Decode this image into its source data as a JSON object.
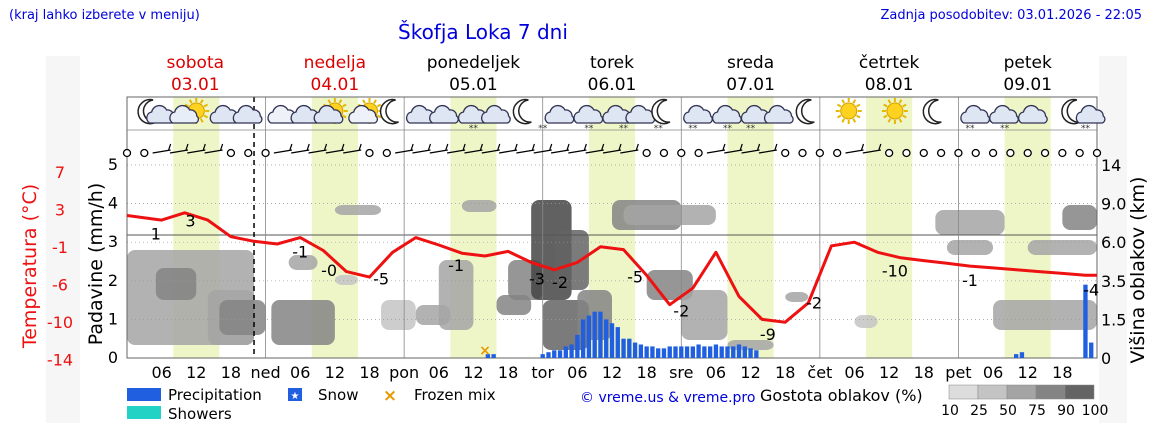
{
  "header": {
    "left_note": "(kraj lahko izberete v meniju)",
    "title": "Škofja Loka 7 dni",
    "updated": "Zadnja posodobitev: 03.01.2026 - 22:05"
  },
  "days": [
    {
      "name": "sobota",
      "date": "03.01",
      "weekend": true
    },
    {
      "name": "nedelja",
      "date": "04.01",
      "weekend": true
    },
    {
      "name": "ponedeljek",
      "date": "05.01",
      "weekend": false
    },
    {
      "name": "torek",
      "date": "06.01",
      "weekend": false
    },
    {
      "name": "sreda",
      "date": "07.01",
      "weekend": false
    },
    {
      "name": "četrtek",
      "date": "08.01",
      "weekend": false
    },
    {
      "name": "petek",
      "date": "09.01",
      "weekend": false
    }
  ],
  "x_day_labels": [
    "ned",
    "pon",
    "tor",
    "sre",
    "čet",
    "pet"
  ],
  "x_hour_labels": [
    "06",
    "12",
    "18"
  ],
  "axes": {
    "temp_label": "Temperatura (°C)",
    "temp_ticks": [
      "7",
      "3",
      "-1",
      "-6",
      "-10",
      "-14"
    ],
    "precip_label": "Padavine (mm/h)",
    "precip_ticks": [
      "5",
      "4",
      "3",
      "2",
      "1",
      "0"
    ],
    "cloud_label": "Višina oblakov (km)",
    "cloud_ticks": [
      "14",
      "9.0",
      "6.0",
      "3.5",
      "1.5",
      "0"
    ]
  },
  "legend": {
    "precipitation": "Precipitation",
    "snow": "Snow",
    "frozen": "Frozen mix",
    "showers": "Showers",
    "copyright": "© vreme.us & vreme.pro",
    "density_title": "Gostota oblakov (%)",
    "density_levels": [
      "10",
      "25",
      "50",
      "75",
      "90",
      "100"
    ],
    "density_colors": [
      "#dcdcdc",
      "#c4c4c4",
      "#a4a4a4",
      "#848484",
      "#646464",
      "#454545"
    ]
  },
  "colors": {
    "temp": "#ee1111",
    "precip": "#1f5fe0",
    "daylight": "#eef6c8",
    "weekend_text": "#dd0000",
    "header_blue": "#0000dd"
  },
  "chart_data": {
    "type": "line",
    "title": "Škofja Loka 7 dni",
    "x_unit": "hours from 03.01 00:00",
    "x_range": [
      0,
      168
    ],
    "now_hour": 22,
    "series": [
      {
        "name": "Temperatura (°C)",
        "x": [
          0,
          6,
          10,
          14,
          18,
          22,
          26,
          30,
          34,
          38,
          42,
          46,
          50,
          54,
          58,
          62,
          66,
          70,
          74,
          78,
          82,
          86,
          90,
          94,
          98,
          102,
          106,
          110,
          114,
          118,
          122,
          126,
          130,
          134,
          138,
          142,
          146,
          150,
          154,
          158,
          162,
          166,
          168
        ],
        "values": [
          1.5,
          1.0,
          1.8,
          1.0,
          -0.8,
          -1.3,
          -1.6,
          -0.9,
          -2.3,
          -4.6,
          -5.2,
          -2.5,
          -0.9,
          -1.7,
          -2.6,
          -2.9,
          -2.4,
          -3.6,
          -4.4,
          -3.6,
          -1.9,
          -2.2,
          -5.0,
          -8.2,
          -6.4,
          -2.5,
          -7.3,
          -9.8,
          -10.1,
          -8.0,
          -1.8,
          -1.4,
          -2.5,
          -3.1,
          -3.4,
          -3.7,
          -4.0,
          -4.2,
          -4.4,
          -4.6,
          -4.8,
          -5.0,
          -5.0
        ]
      }
    ],
    "temp_point_labels": [
      {
        "hour": 5,
        "label": "1"
      },
      {
        "hour": 11,
        "label": "3"
      },
      {
        "hour": 30,
        "label": "-1"
      },
      {
        "hour": 35,
        "label": "-0"
      },
      {
        "hour": 44,
        "label": "-5"
      },
      {
        "hour": 57,
        "label": "-1"
      },
      {
        "hour": 71,
        "label": "-3"
      },
      {
        "hour": 75,
        "label": "-2"
      },
      {
        "hour": 88,
        "label": "-5"
      },
      {
        "hour": 96,
        "label": "-2"
      },
      {
        "hour": 111,
        "label": "-9"
      },
      {
        "hour": 119,
        "label": "-2"
      },
      {
        "hour": 133,
        "label": "-10"
      },
      {
        "hour": 146,
        "label": "-1"
      },
      {
        "hour": 167,
        "label": "-4"
      }
    ],
    "temp_ylim": [
      -14,
      7
    ],
    "precip_ylim": [
      0,
      5
    ],
    "cloud_height_ylim_km": [
      0,
      14
    ],
    "precipitation": [
      {
        "hour": 62.5,
        "mm": 0.1
      },
      {
        "hour": 63.5,
        "mm": 0.1
      },
      {
        "hour": 72,
        "mm": 0.1
      },
      {
        "hour": 73,
        "mm": 0.15
      },
      {
        "hour": 74,
        "mm": 0.2
      },
      {
        "hour": 75,
        "mm": 0.2
      },
      {
        "hour": 76,
        "mm": 0.3
      },
      {
        "hour": 77,
        "mm": 0.35
      },
      {
        "hour": 78,
        "mm": 0.6
      },
      {
        "hour": 79,
        "mm": 1.0
      },
      {
        "hour": 80,
        "mm": 1.1
      },
      {
        "hour": 81,
        "mm": 1.2
      },
      {
        "hour": 82,
        "mm": 1.2
      },
      {
        "hour": 83,
        "mm": 1.0
      },
      {
        "hour": 84,
        "mm": 0.9
      },
      {
        "hour": 85,
        "mm": 0.8
      },
      {
        "hour": 86,
        "mm": 0.5
      },
      {
        "hour": 87,
        "mm": 0.5
      },
      {
        "hour": 88,
        "mm": 0.4
      },
      {
        "hour": 89,
        "mm": 0.35
      },
      {
        "hour": 90,
        "mm": 0.3
      },
      {
        "hour": 91,
        "mm": 0.3
      },
      {
        "hour": 92,
        "mm": 0.25
      },
      {
        "hour": 93,
        "mm": 0.25
      },
      {
        "hour": 94,
        "mm": 0.3
      },
      {
        "hour": 95,
        "mm": 0.3
      },
      {
        "hour": 96,
        "mm": 0.3
      },
      {
        "hour": 97,
        "mm": 0.3
      },
      {
        "hour": 98,
        "mm": 0.3
      },
      {
        "hour": 99,
        "mm": 0.35
      },
      {
        "hour": 100,
        "mm": 0.3
      },
      {
        "hour": 101,
        "mm": 0.3
      },
      {
        "hour": 102,
        "mm": 0.35
      },
      {
        "hour": 103,
        "mm": 0.3
      },
      {
        "hour": 104,
        "mm": 0.3
      },
      {
        "hour": 105,
        "mm": 0.3
      },
      {
        "hour": 106,
        "mm": 0.35
      },
      {
        "hour": 107,
        "mm": 0.3
      },
      {
        "hour": 108,
        "mm": 0.25
      },
      {
        "hour": 109,
        "mm": 0.2
      },
      {
        "hour": 154,
        "mm": 0.1
      },
      {
        "hour": 155,
        "mm": 0.15
      },
      {
        "hour": 166,
        "mm": 1.9
      },
      {
        "hour": 167,
        "mm": 0.4
      }
    ],
    "frozen_mix_hours": [
      62
    ]
  }
}
